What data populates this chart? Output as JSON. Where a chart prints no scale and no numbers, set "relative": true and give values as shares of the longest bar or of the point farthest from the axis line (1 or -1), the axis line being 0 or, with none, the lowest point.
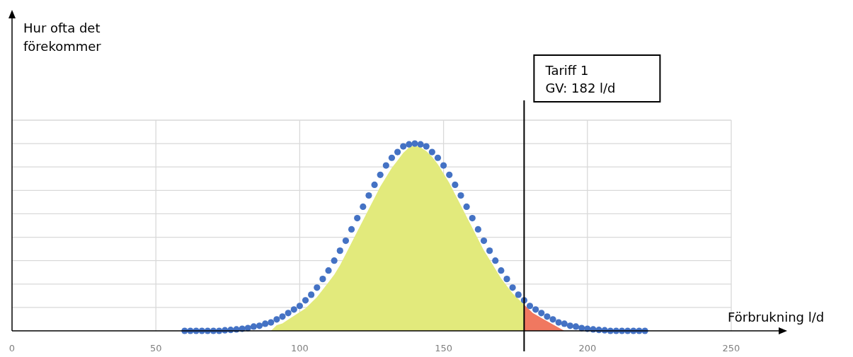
{
  "chart_data": {
    "type": "scatter",
    "relative": true,
    "xlabel": "Förbrukning l/d",
    "xlim": [
      0,
      250
    ],
    "xticks": [
      0,
      50,
      100,
      150,
      200,
      250
    ],
    "grid": true,
    "ref_lines": [
      {
        "axis": "x",
        "value": 178,
        "color": "#000000"
      }
    ],
    "annotations": [
      "Hur ofta det förekommer",
      "Tariff 1\nGV: 182 l/d"
    ],
    "series": [
      {
        "type": "area",
        "color": "#e2ea7c",
        "x": [
          90,
          92,
          94,
          96,
          98,
          100,
          102,
          104,
          106,
          108,
          110,
          112,
          114,
          116,
          118,
          120,
          122,
          124,
          126,
          128,
          130,
          132,
          134,
          136,
          138,
          140,
          142,
          144,
          146,
          148,
          150,
          152,
          154,
          156,
          158,
          160,
          162,
          164,
          166,
          168,
          170,
          172,
          174,
          176,
          178
        ],
        "values": [
          0,
          0.03,
          0.04,
          0.06,
          0.08,
          0.1,
          0.12,
          0.15,
          0.18,
          0.22,
          0.26,
          0.3,
          0.35,
          0.41,
          0.47,
          0.53,
          0.59,
          0.65,
          0.71,
          0.77,
          0.82,
          0.87,
          0.91,
          0.95,
          0.98,
          0.99,
          0.98,
          0.96,
          0.93,
          0.89,
          0.84,
          0.79,
          0.73,
          0.67,
          0.61,
          0.55,
          0.49,
          0.43,
          0.38,
          0.33,
          0.28,
          0.24,
          0.2,
          0.17,
          0.14
        ]
      },
      {
        "type": "area",
        "color": "#f07860",
        "x": [
          178,
          181,
          192
        ],
        "values": [
          0.14,
          0.095,
          0
        ]
      },
      {
        "color": "#4472c4",
        "marker": "circle",
        "x": [
          60,
          62,
          64,
          66,
          68,
          70,
          72,
          74,
          76,
          78,
          80,
          82,
          84,
          86,
          88,
          90,
          92,
          94,
          96,
          98,
          100,
          102,
          104,
          106,
          108,
          110,
          112,
          114,
          116,
          118,
          120,
          122,
          124,
          126,
          128,
          130,
          132,
          134,
          136,
          138,
          140,
          142,
          144,
          146,
          148,
          150,
          152,
          154,
          156,
          158,
          160,
          162,
          164,
          166,
          168,
          170,
          172,
          174,
          176,
          178,
          180,
          182,
          184,
          186,
          188,
          190,
          192,
          194,
          196,
          198,
          200,
          202,
          204,
          206,
          208,
          210,
          212,
          214,
          216,
          218,
          220
        ],
        "values": [
          0,
          0,
          0,
          0,
          0,
          0,
          0,
          0.003,
          0.005,
          0.008,
          0.011,
          0.015,
          0.023,
          0.027,
          0.038,
          0.045,
          0.061,
          0.076,
          0.095,
          0.114,
          0.133,
          0.163,
          0.193,
          0.231,
          0.277,
          0.322,
          0.375,
          0.428,
          0.481,
          0.542,
          0.602,
          0.663,
          0.723,
          0.78,
          0.833,
          0.883,
          0.924,
          0.955,
          0.985,
          0.996,
          1,
          0.996,
          0.985,
          0.955,
          0.924,
          0.883,
          0.833,
          0.78,
          0.723,
          0.663,
          0.602,
          0.542,
          0.481,
          0.428,
          0.375,
          0.322,
          0.277,
          0.231,
          0.193,
          0.163,
          0.133,
          0.114,
          0.095,
          0.076,
          0.061,
          0.045,
          0.038,
          0.027,
          0.023,
          0.015,
          0.011,
          0.008,
          0.005,
          0.003,
          0,
          0,
          0,
          0,
          0,
          0,
          0
        ]
      }
    ]
  }
}
